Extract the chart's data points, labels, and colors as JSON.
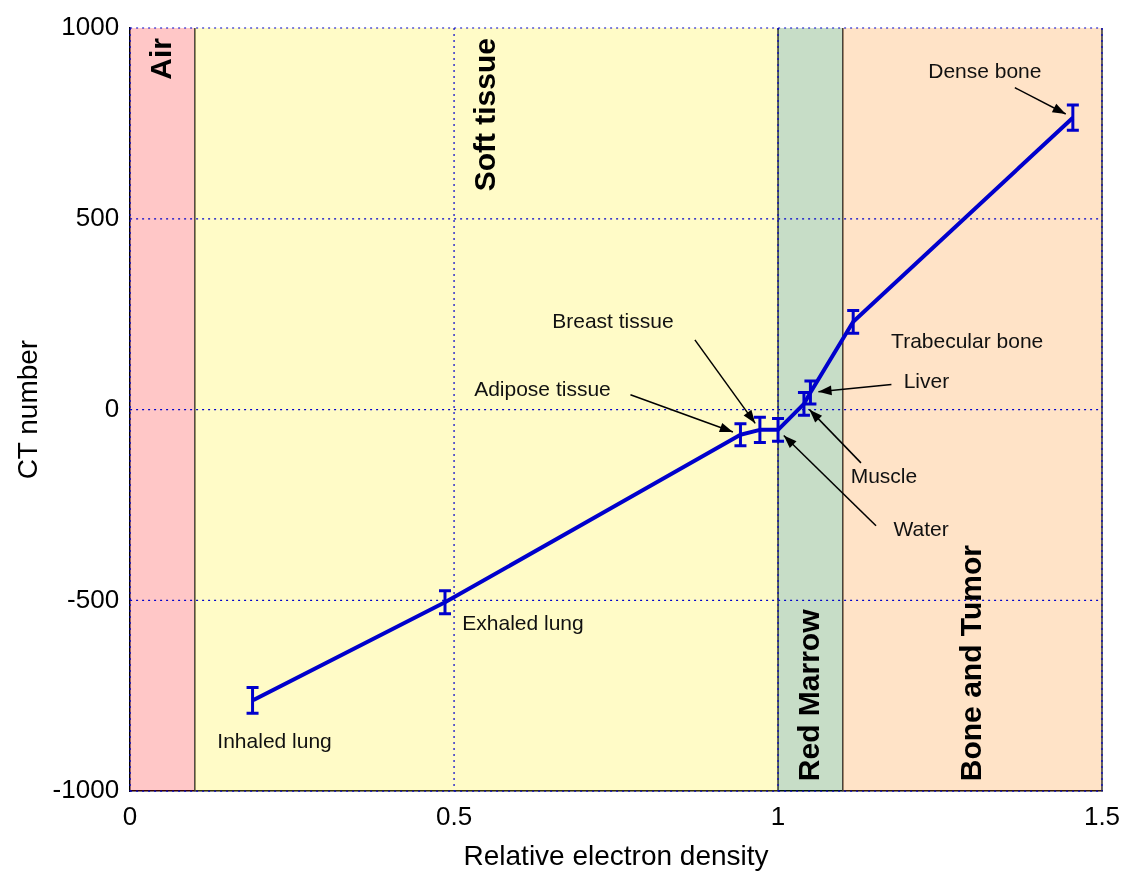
{
  "chart_data": {
    "type": "line",
    "xlabel": "Relative electron density",
    "ylabel": "CT number",
    "x": [
      0.189,
      0.486,
      0.942,
      0.972,
      1.0,
      1.04,
      1.05,
      1.116,
      1.455
    ],
    "series": [
      {
        "color": "#0000cc",
        "values": [
          -762,
          -505,
          -66,
          -53,
          -53,
          15,
          45,
          230,
          765
        ],
        "errors": [
          34,
          30,
          29,
          33,
          30,
          30,
          30,
          30,
          33
        ]
      }
    ],
    "xlim": [
      0,
      1.5
    ],
    "xticks": [
      0,
      0.5,
      1,
      1.5
    ],
    "ylim": [
      -1000,
      1000
    ],
    "yticks": [
      -1000,
      -500,
      0,
      500,
      1000
    ],
    "grid": true,
    "line_style": "solid",
    "bands": [
      {
        "axis": "x",
        "from": 0,
        "to": 0.1,
        "label": "Air",
        "color": "#ff0000"
      },
      {
        "axis": "x",
        "from": 0.1,
        "to": 1.0,
        "label": "Soft tissue",
        "color": "#ffee00"
      },
      {
        "axis": "x",
        "from": 1.0,
        "to": 1.1,
        "label": "Red Marrow",
        "color": "#006400"
      },
      {
        "axis": "x",
        "from": 1.1,
        "to": 1.5,
        "label": "Bone and Tumor",
        "color": "#ff8000"
      }
    ],
    "annotations": [
      {
        "text": "Inhaled lung",
        "x": 0.189,
        "y": -762
      },
      {
        "text": "Exhaled lung",
        "x": 0.486,
        "y": -505
      },
      {
        "text": "Adipose tissue",
        "x": 0.942,
        "y": -66
      },
      {
        "text": "Breast tissue",
        "x": 0.972,
        "y": -53
      },
      {
        "text": "Water",
        "x": 1.0,
        "y": -53
      },
      {
        "text": "Muscle",
        "x": 1.04,
        "y": 15
      },
      {
        "text": "Liver",
        "x": 1.05,
        "y": 45
      },
      {
        "text": "Trabecular bone",
        "x": 1.116,
        "y": 230
      },
      {
        "text": "Dense bone",
        "x": 1.455,
        "y": 765
      }
    ]
  }
}
